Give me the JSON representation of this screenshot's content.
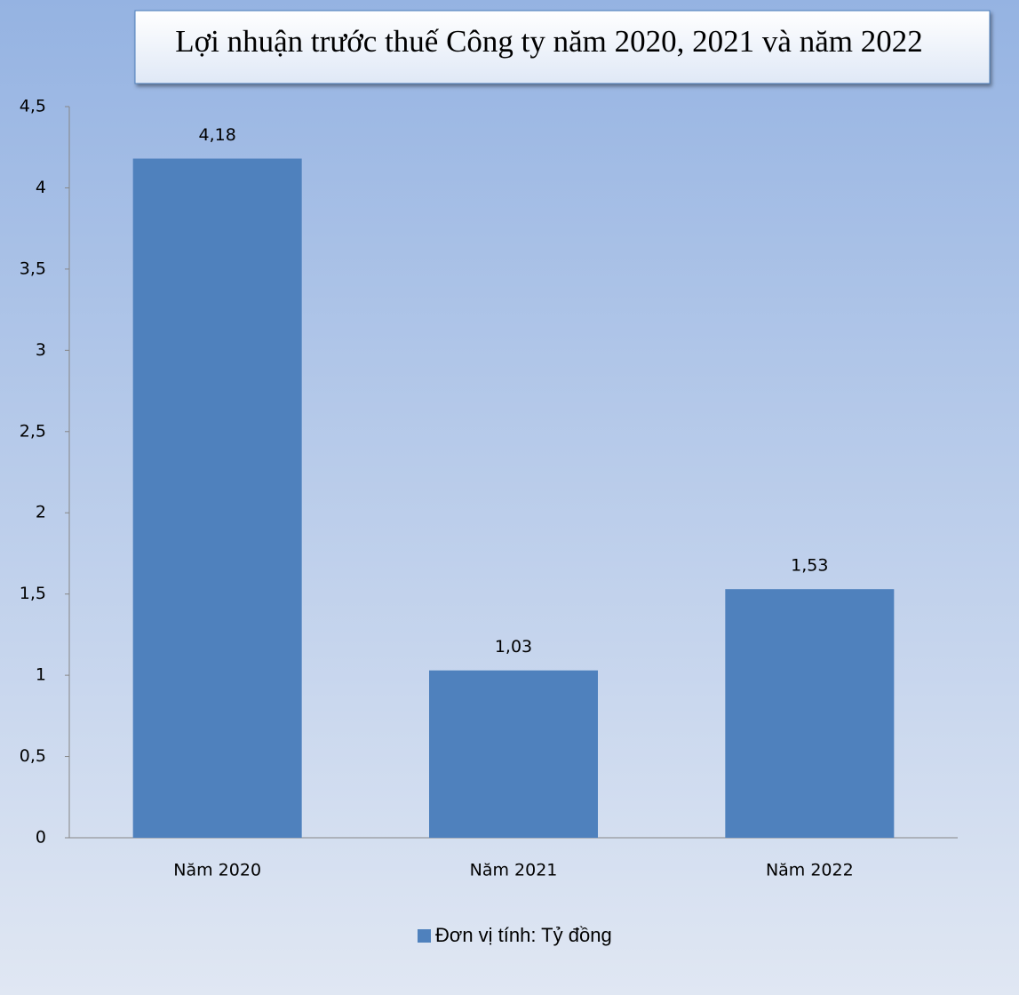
{
  "chart_data": {
    "type": "bar",
    "title": "Lợi nhuận trước thuế Công ty năm 2020, 2021 và năm 2022",
    "categories": [
      "Năm 2020",
      "Năm 2021",
      "Năm 2022"
    ],
    "series": [
      {
        "name": "Đơn vị tính: Tỷ đồng",
        "color": "#4f81bd",
        "values": [
          4.18,
          1.03,
          1.53
        ],
        "value_labels": [
          "4,18",
          "1,03",
          "1,53"
        ]
      }
    ],
    "ylim": [
      0,
      4.5
    ],
    "yticks": [
      0,
      {
        "value": 0.5,
        "label": "0,5"
      },
      1,
      {
        "value": 1.5,
        "label": "1,5"
      },
      2,
      {
        "value": 2.5,
        "label": "2,5"
      },
      3,
      {
        "value": 3.5,
        "label": "3,5"
      },
      4,
      {
        "value": 4.5,
        "label": "4,5"
      }
    ],
    "grid": false,
    "legend": "bottom"
  }
}
